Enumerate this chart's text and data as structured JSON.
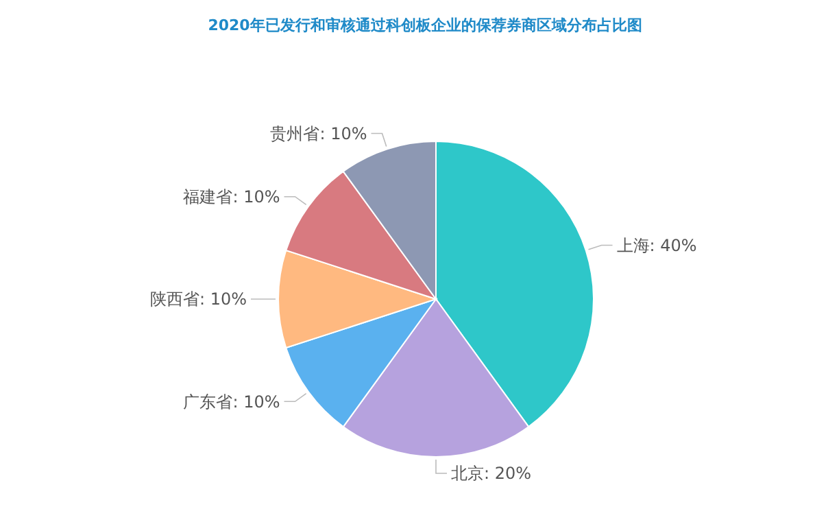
{
  "chart_data": {
    "type": "pie",
    "title": "2020年已发行和审核通过科创板企业的保荐券商区域分布占比图",
    "categories": [
      "上海",
      "北京",
      "广东省",
      "陕西省",
      "福建省",
      "贵州省"
    ],
    "values": [
      40,
      20,
      10,
      10,
      10,
      10
    ],
    "value_labels": [
      "40%",
      "20%",
      "10%",
      "10%",
      "10%",
      "10%"
    ],
    "colors": [
      "#2ec7c9",
      "#b6a2de",
      "#5ab1ef",
      "#ffb980",
      "#d87a80",
      "#8d98b3"
    ]
  }
}
